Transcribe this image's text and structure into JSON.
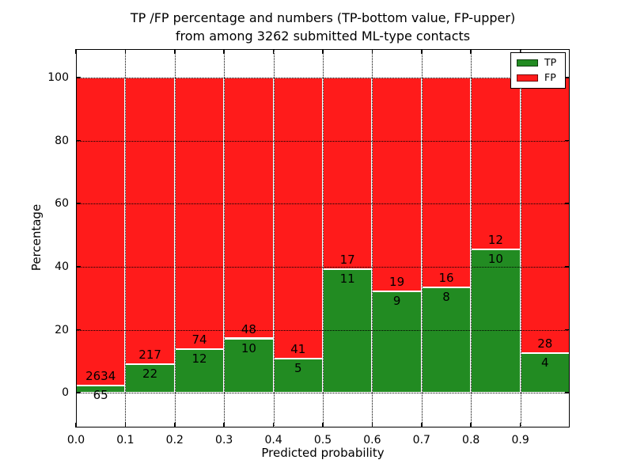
{
  "title": {
    "line1": "TP /FP percentage and numbers (TP-bottom value, FP-upper)",
    "line2": "from among 3262 submitted ML-type contacts"
  },
  "chart_data": {
    "type": "bar",
    "variant": "stacked-percentage",
    "title": "TP /FP percentage and numbers (TP-bottom value, FP-upper)\nfrom among 3262 submitted ML-type contacts",
    "xlabel": "Predicted probability",
    "ylabel": "Percentage",
    "total_contacts": 3262,
    "xlim": [
      0.0,
      1.0
    ],
    "ylim": [
      -11,
      109
    ],
    "xticks": [
      0.0,
      0.1,
      0.2,
      0.3,
      0.4,
      0.5,
      0.6,
      0.7,
      0.8,
      0.9
    ],
    "xtick_labels": [
      "0.0",
      "0.1",
      "0.2",
      "0.3",
      "0.4",
      "0.5",
      "0.6",
      "0.7",
      "0.8",
      "0.9"
    ],
    "yticks": [
      0,
      20,
      40,
      60,
      80,
      100
    ],
    "ytick_labels": [
      "0",
      "20",
      "40",
      "60",
      "80",
      "100"
    ],
    "grid": true,
    "bins": [
      0.0,
      0.1,
      0.2,
      0.3,
      0.4,
      0.5,
      0.6,
      0.7,
      0.8,
      0.9
    ],
    "bin_width": 0.1,
    "series": [
      {
        "name": "TP",
        "color": "#228B22",
        "counts": [
          65,
          22,
          12,
          10,
          5,
          11,
          9,
          8,
          10,
          4
        ]
      },
      {
        "name": "FP",
        "color": "#FF1B1B",
        "counts": [
          2634,
          217,
          74,
          48,
          41,
          17,
          19,
          16,
          12,
          28
        ]
      }
    ],
    "tp_percentages": [
      2.4,
      9.2,
      14.0,
      17.2,
      10.9,
      39.3,
      32.1,
      33.3,
      45.5,
      12.5
    ],
    "legend": {
      "position": "upper right",
      "entries": [
        "TP",
        "FP"
      ]
    }
  }
}
